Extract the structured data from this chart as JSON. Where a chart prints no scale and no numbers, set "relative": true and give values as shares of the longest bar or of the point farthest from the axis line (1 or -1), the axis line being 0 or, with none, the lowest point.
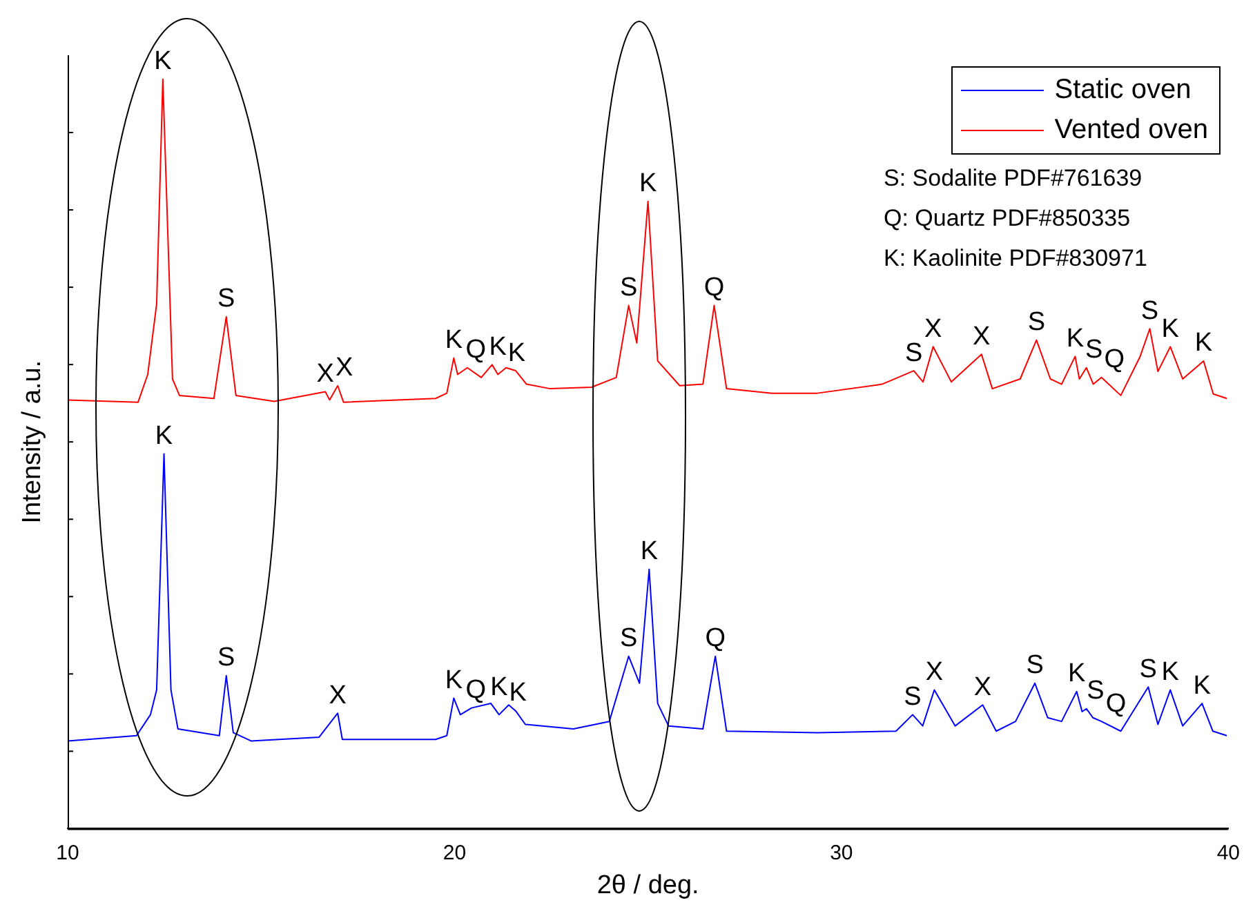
{
  "chart_data": {
    "type": "line",
    "relative": true,
    "xlabel": "2θ / deg.",
    "ylabel": "Intensity / a.u.",
    "xlim": [
      10,
      40
    ],
    "xticks": [
      10,
      20,
      30,
      40
    ],
    "legend": "top right",
    "grid": false,
    "marker": "none",
    "line_style": "solid",
    "series": [
      {
        "name": "Static oven",
        "color": "#0000ff",
        "x": [
          10,
          11.78,
          12.14,
          12.3,
          12.49,
          12.67,
          12.85,
          13.92,
          14.1,
          14.28,
          14.74,
          16.5,
          16.98,
          17.1,
          19.51,
          19.8,
          19.98,
          20.15,
          20.44,
          20.94,
          21.15,
          21.4,
          21.58,
          21.83,
          23.07,
          24.0,
          24.5,
          24.78,
          25.03,
          25.25,
          25.53,
          26.42,
          26.74,
          27.03,
          29.38,
          31.41,
          31.84,
          32.1,
          32.4,
          32.94,
          33.65,
          34.0,
          34.5,
          35.0,
          35.33,
          35.69,
          36.08,
          36.22,
          36.33,
          36.5,
          36.72,
          37.22,
          37.93,
          38.18,
          38.5,
          38.82,
          39.32,
          39.6,
          39.96
        ],
        "values": [
          0.117,
          0.124,
          0.152,
          0.185,
          0.5,
          0.185,
          0.133,
          0.124,
          0.204,
          0.128,
          0.117,
          0.122,
          0.154,
          0.119,
          0.119,
          0.124,
          0.174,
          0.152,
          0.161,
          0.167,
          0.152,
          0.165,
          0.157,
          0.139,
          0.133,
          0.143,
          0.23,
          0.194,
          0.346,
          0.167,
          0.137,
          0.133,
          0.23,
          0.13,
          0.128,
          0.13,
          0.152,
          0.137,
          0.185,
          0.137,
          0.165,
          0.13,
          0.143,
          0.194,
          0.148,
          0.143,
          0.183,
          0.156,
          0.16,
          0.148,
          0.143,
          0.13,
          0.189,
          0.139,
          0.185,
          0.137,
          0.167,
          0.13,
          0.124
        ]
      },
      {
        "name": "Vented oven",
        "color": "#ff0000",
        "x": [
          10,
          11.82,
          12.07,
          12.3,
          12.46,
          12.71,
          12.89,
          13.78,
          14.1,
          14.35,
          15.34,
          16.66,
          16.77,
          16.98,
          17.13,
          19.51,
          19.8,
          19.98,
          20.08,
          20.33,
          20.69,
          20.97,
          21.12,
          21.33,
          21.58,
          21.86,
          22.47,
          23.54,
          24.18,
          24.5,
          24.71,
          25.0,
          25.25,
          25.82,
          26.42,
          26.71,
          27.03,
          28.2,
          29.38,
          31.05,
          31.87,
          32.11,
          32.37,
          32.84,
          33.62,
          33.9,
          34.62,
          35.04,
          35.4,
          35.69,
          36.04,
          36.15,
          36.33,
          36.51,
          36.72,
          37.22,
          37.72,
          37.97,
          38.18,
          38.5,
          38.82,
          39.36,
          39.61,
          39.96
        ],
        "values": [
          0.572,
          0.569,
          0.606,
          0.7,
          1.0,
          0.6,
          0.578,
          0.574,
          0.683,
          0.578,
          0.57,
          0.583,
          0.572,
          0.591,
          0.569,
          0.574,
          0.581,
          0.628,
          0.606,
          0.615,
          0.602,
          0.619,
          0.606,
          0.615,
          0.611,
          0.593,
          0.587,
          0.589,
          0.602,
          0.698,
          0.648,
          0.837,
          0.624,
          0.591,
          0.593,
          0.698,
          0.587,
          0.581,
          0.581,
          0.593,
          0.611,
          0.596,
          0.643,
          0.596,
          0.633,
          0.587,
          0.6,
          0.652,
          0.6,
          0.593,
          0.63,
          0.6,
          0.615,
          0.593,
          0.602,
          0.578,
          0.63,
          0.667,
          0.61,
          0.643,
          0.6,
          0.624,
          0.58,
          0.574
        ]
      }
    ],
    "annotations": [
      {
        "text": "K",
        "x": 12.46,
        "y": 1.0
      },
      {
        "text": "S",
        "x": 14.1,
        "y": 0.683
      },
      {
        "text": "X",
        "x": 16.66,
        "y": 0.583
      },
      {
        "text": "X",
        "x": 16.98,
        "y": 0.591
      },
      {
        "text": "K",
        "x": 19.98,
        "y": 0.628
      },
      {
        "text": "Q",
        "x": 20.55,
        "y": 0.615
      },
      {
        "text": "K",
        "x": 21.12,
        "y": 0.619
      },
      {
        "text": "K",
        "x": 21.58,
        "y": 0.611
      },
      {
        "text": "S",
        "x": 24.5,
        "y": 0.698
      },
      {
        "text": "K",
        "x": 25.0,
        "y": 0.837
      },
      {
        "text": "Q",
        "x": 26.71,
        "y": 0.698
      },
      {
        "text": "S",
        "x": 31.87,
        "y": 0.611
      },
      {
        "text": "X",
        "x": 32.37,
        "y": 0.643
      },
      {
        "text": "X",
        "x": 33.62,
        "y": 0.633
      },
      {
        "text": "S",
        "x": 35.04,
        "y": 0.652
      },
      {
        "text": "K",
        "x": 36.04,
        "y": 0.63
      },
      {
        "text": "S",
        "x": 36.33,
        "y": 0.615
      },
      {
        "text": "Q",
        "x": 36.72,
        "y": 0.602
      },
      {
        "text": "S",
        "x": 37.97,
        "y": 0.667
      },
      {
        "text": "K",
        "x": 38.5,
        "y": 0.643
      },
      {
        "text": "K",
        "x": 39.36,
        "y": 0.624
      },
      {
        "text": "K",
        "x": 12.49,
        "y": 0.5
      },
      {
        "text": "S",
        "x": 14.1,
        "y": 0.204
      },
      {
        "text": "X",
        "x": 16.98,
        "y": 0.154
      },
      {
        "text": "K",
        "x": 19.98,
        "y": 0.174
      },
      {
        "text": "Q",
        "x": 20.55,
        "y": 0.161
      },
      {
        "text": "K",
        "x": 21.15,
        "y": 0.165
      },
      {
        "text": "K",
        "x": 21.58,
        "y": 0.157
      },
      {
        "text": "S",
        "x": 24.5,
        "y": 0.23
      },
      {
        "text": "K",
        "x": 25.03,
        "y": 0.346
      },
      {
        "text": "Q",
        "x": 26.74,
        "y": 0.23
      },
      {
        "text": "S",
        "x": 31.84,
        "y": 0.152
      },
      {
        "text": "X",
        "x": 32.4,
        "y": 0.185
      },
      {
        "text": "X",
        "x": 33.65,
        "y": 0.165
      },
      {
        "text": "S",
        "x": 35.0,
        "y": 0.194
      },
      {
        "text": "K",
        "x": 36.08,
        "y": 0.183
      },
      {
        "text": "S",
        "x": 36.33,
        "y": 0.16
      },
      {
        "text": "Q",
        "x": 36.72,
        "y": 0.143
      },
      {
        "text": "S",
        "x": 37.93,
        "y": 0.189
      },
      {
        "text": "K",
        "x": 38.5,
        "y": 0.185
      },
      {
        "text": "K",
        "x": 39.32,
        "y": 0.167
      },
      "S: Sodalite PDF#761639",
      "Q: Quartz PDF#850335",
      "K: Kaolinite PDF#830971"
    ]
  }
}
